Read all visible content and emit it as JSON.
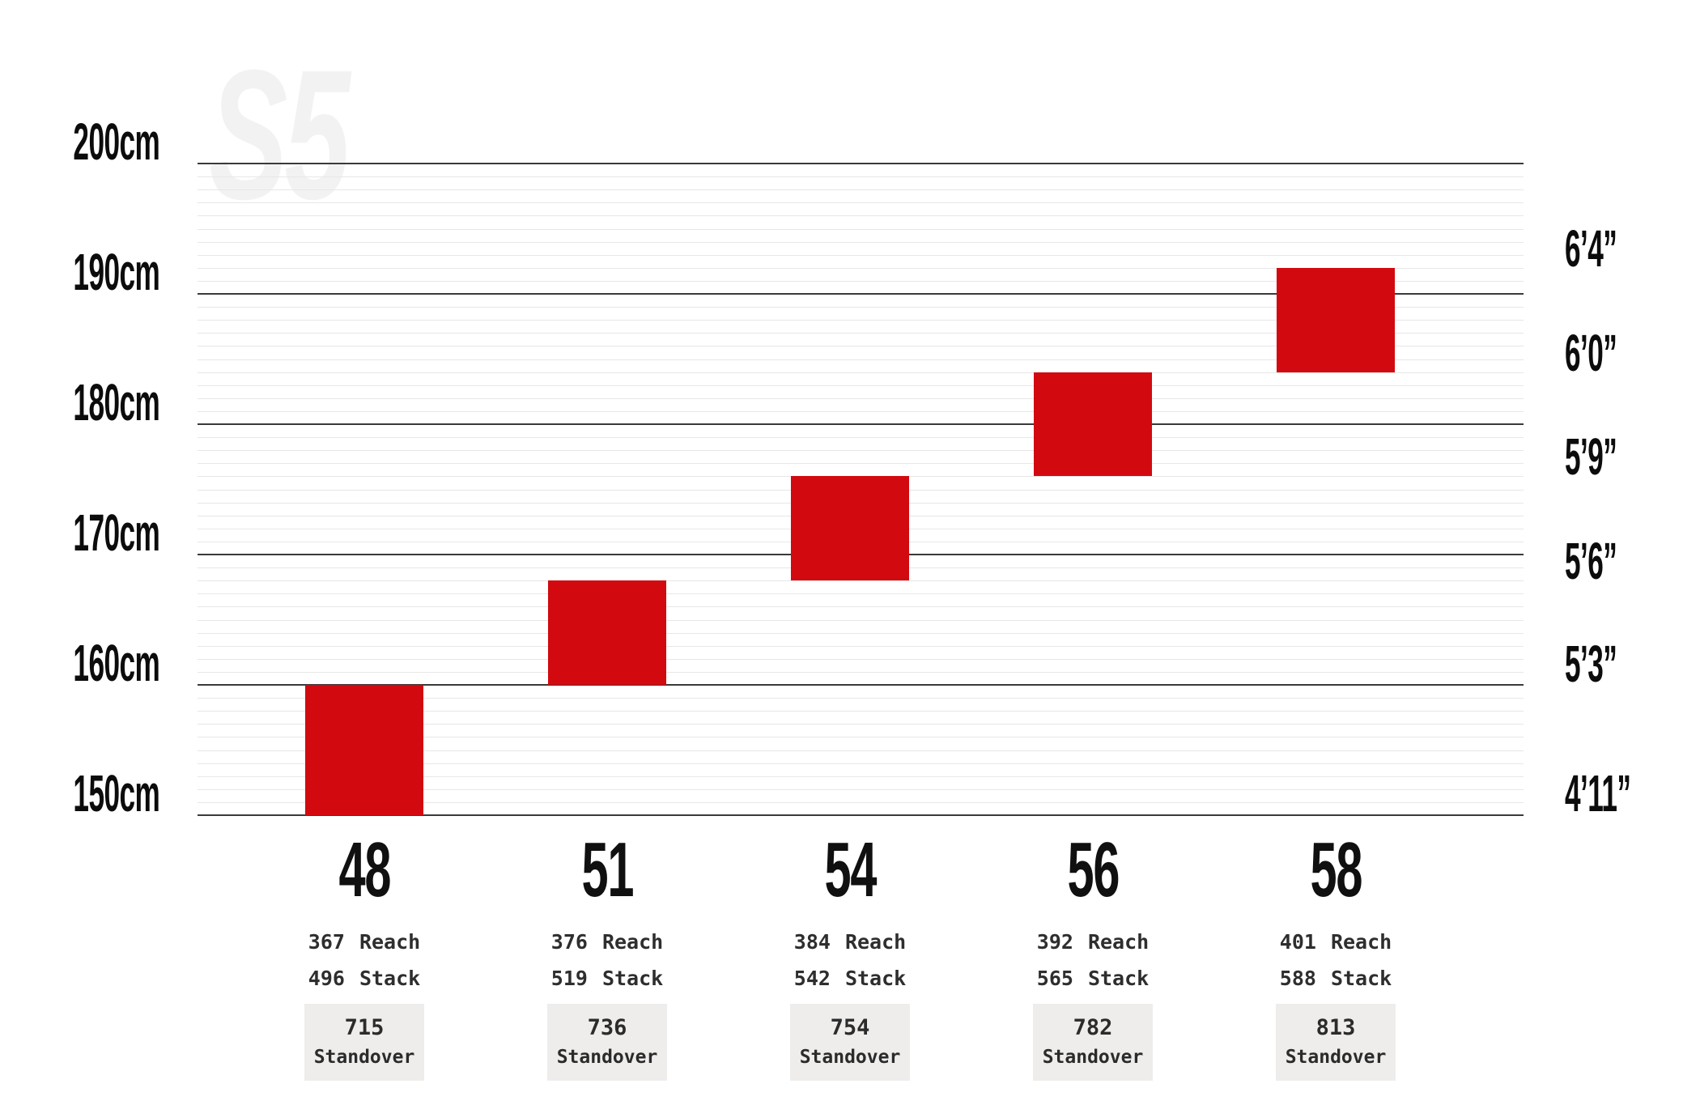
{
  "watermark": "S5",
  "chart_data": {
    "type": "bar",
    "description": "Bike frame size vs rider height range chart",
    "y_axis": {
      "unit": "cm",
      "min_cm": 150,
      "max_cm": 200,
      "minor_step_cm": 1,
      "major_step_cm": 10,
      "left_ticks": [
        {
          "label": "200cm",
          "cm": 200
        },
        {
          "label": "190cm",
          "cm": 190
        },
        {
          "label": "180cm",
          "cm": 180
        },
        {
          "label": "170cm",
          "cm": 170
        },
        {
          "label": "160cm",
          "cm": 160
        },
        {
          "label": "150cm",
          "cm": 150
        }
      ],
      "right_ticks": [
        {
          "label": "6’4”",
          "cm": 193.3
        },
        {
          "label": "6’0”",
          "cm": 185.3
        },
        {
          "label": "5’9”",
          "cm": 177.3
        },
        {
          "label": "5’6”",
          "cm": 169.3
        },
        {
          "label": "5’3”",
          "cm": 161.4
        },
        {
          "label": "4’11”",
          "cm": 151.5
        }
      ]
    },
    "labels": {
      "reach": "Reach",
      "stack": "Stack",
      "standover": "Standover"
    },
    "sizes": [
      {
        "size": "48",
        "height_range_cm": [
          150,
          160
        ],
        "reach": "367",
        "stack": "496",
        "standover": "715"
      },
      {
        "size": "51",
        "height_range_cm": [
          160,
          168
        ],
        "reach": "376",
        "stack": "519",
        "standover": "736"
      },
      {
        "size": "54",
        "height_range_cm": [
          168,
          176
        ],
        "reach": "384",
        "stack": "542",
        "standover": "754"
      },
      {
        "size": "56",
        "height_range_cm": [
          176,
          184
        ],
        "reach": "392",
        "stack": "565",
        "standover": "782"
      },
      {
        "size": "58",
        "height_range_cm": [
          184,
          192
        ],
        "reach": "401",
        "stack": "588",
        "standover": "813"
      }
    ],
    "colors": {
      "bar": "#d20a10",
      "grid_major": "#3a3a3a",
      "grid_minor": "#e7e7e7",
      "standover_box_bg": "#eeedec",
      "text": "#0c0c0c"
    },
    "legend_position": "none",
    "grid": true
  }
}
